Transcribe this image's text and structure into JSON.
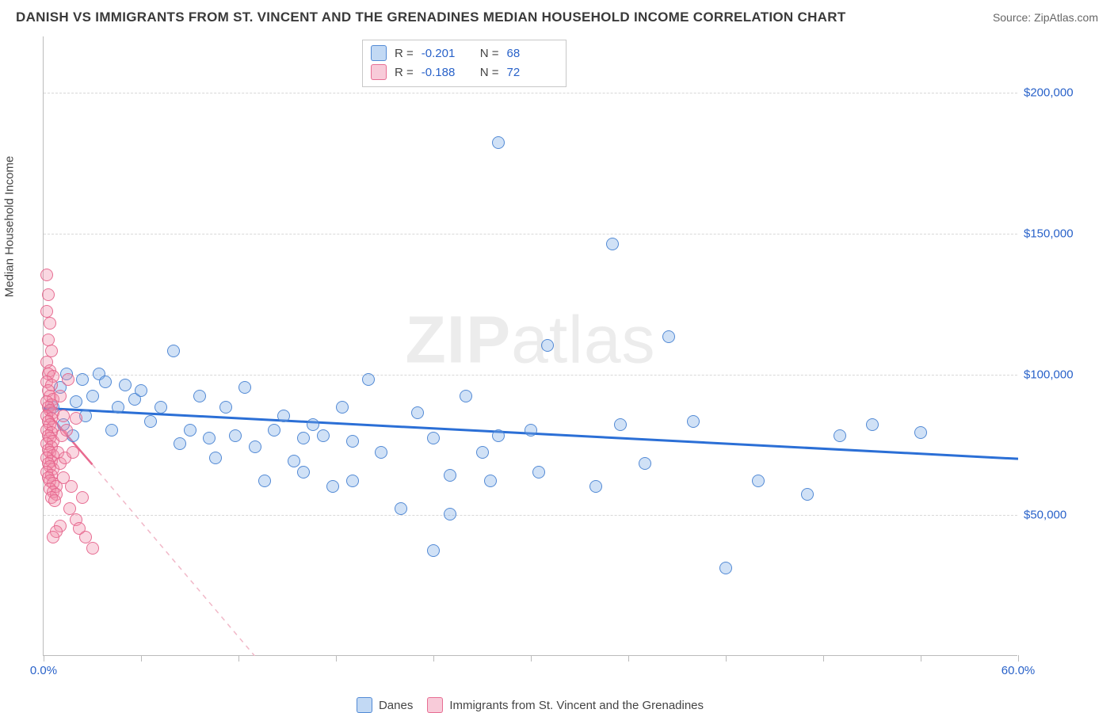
{
  "header": {
    "title": "DANISH VS IMMIGRANTS FROM ST. VINCENT AND THE GRENADINES MEDIAN HOUSEHOLD INCOME CORRELATION CHART",
    "source_label": "Source: ",
    "source_value": "ZipAtlas.com"
  },
  "watermark": {
    "part1": "ZIP",
    "part2": "atlas"
  },
  "chart": {
    "type": "scatter",
    "ylabel": "Median Household Income",
    "xlim": [
      0,
      60
    ],
    "ylim": [
      0,
      220000
    ],
    "x_tick_positions": [
      0,
      6,
      12,
      18,
      24,
      30,
      36,
      42,
      48,
      54,
      60
    ],
    "x_tick_labels_shown": {
      "0": "0.0%",
      "60": "60.0%"
    },
    "y_gridlines": [
      50000,
      100000,
      150000,
      200000
    ],
    "y_tick_labels": {
      "50000": "$50,000",
      "100000": "$100,000",
      "150000": "$150,000",
      "200000": "$200,000"
    },
    "background_color": "#ffffff",
    "grid_color": "#d8d8d8",
    "axis_color": "#bbbbbb",
    "tick_label_color": "#2962c9",
    "series": [
      {
        "id": "danes",
        "label": "Danes",
        "marker_class": "pt-blue",
        "swatch_class": "sw-blue",
        "trend": {
          "x1": 0,
          "y1": 88000,
          "x2": 60,
          "y2": 70000,
          "style": "tl-blue"
        },
        "stats": {
          "R": "-0.201",
          "N": "68"
        },
        "points": [
          [
            0.6,
            88000
          ],
          [
            1.0,
            95000
          ],
          [
            1.2,
            82000
          ],
          [
            1.4,
            100000
          ],
          [
            1.8,
            78000
          ],
          [
            2.0,
            90000
          ],
          [
            2.4,
            98000
          ],
          [
            2.6,
            85000
          ],
          [
            3.0,
            92000
          ],
          [
            3.4,
            100000
          ],
          [
            3.8,
            97000
          ],
          [
            4.2,
            80000
          ],
          [
            4.6,
            88000
          ],
          [
            5.0,
            96000
          ],
          [
            5.6,
            91000
          ],
          [
            6.0,
            94000
          ],
          [
            6.6,
            83000
          ],
          [
            7.2,
            88000
          ],
          [
            8.0,
            108000
          ],
          [
            8.4,
            75000
          ],
          [
            9.0,
            80000
          ],
          [
            9.6,
            92000
          ],
          [
            10.2,
            77000
          ],
          [
            10.6,
            70000
          ],
          [
            11.2,
            88000
          ],
          [
            11.8,
            78000
          ],
          [
            12.4,
            95000
          ],
          [
            13.0,
            74000
          ],
          [
            13.6,
            62000
          ],
          [
            14.2,
            80000
          ],
          [
            14.8,
            85000
          ],
          [
            15.4,
            69000
          ],
          [
            16.0,
            77000
          ],
          [
            16.0,
            65000
          ],
          [
            16.6,
            82000
          ],
          [
            17.2,
            78000
          ],
          [
            17.8,
            60000
          ],
          [
            18.4,
            88000
          ],
          [
            19.0,
            76000
          ],
          [
            19.0,
            62000
          ],
          [
            20.0,
            98000
          ],
          [
            20.8,
            72000
          ],
          [
            22.0,
            52000
          ],
          [
            23.0,
            86000
          ],
          [
            24.0,
            37000
          ],
          [
            24.0,
            77000
          ],
          [
            25.0,
            64000
          ],
          [
            25.0,
            50000
          ],
          [
            26.0,
            92000
          ],
          [
            27.0,
            72000
          ],
          [
            27.5,
            62000
          ],
          [
            28.0,
            78000
          ],
          [
            28.0,
            182000
          ],
          [
            30.0,
            80000
          ],
          [
            30.5,
            65000
          ],
          [
            31.0,
            110000
          ],
          [
            34.0,
            60000
          ],
          [
            35.0,
            146000
          ],
          [
            35.5,
            82000
          ],
          [
            37.0,
            68000
          ],
          [
            38.5,
            113000
          ],
          [
            40.0,
            83000
          ],
          [
            42.0,
            31000
          ],
          [
            44.0,
            62000
          ],
          [
            47.0,
            57000
          ],
          [
            49.0,
            78000
          ],
          [
            51.0,
            82000
          ],
          [
            54.0,
            79000
          ]
        ]
      },
      {
        "id": "svg_immigrants",
        "label": "Immigrants from St. Vincent and the Grenadines",
        "marker_class": "pt-pink",
        "swatch_class": "sw-pink",
        "trend_solid": {
          "x1": 0,
          "y1": 88000,
          "x2": 3,
          "y2": 68000,
          "style": "tl-pink-solid"
        },
        "trend_dash": {
          "x1": 3,
          "y1": 68000,
          "x2": 13,
          "y2": 0,
          "style": "tl-pink-dash"
        },
        "stats": {
          "R": "-0.188",
          "N": "72"
        },
        "points": [
          [
            0.2,
            135000
          ],
          [
            0.3,
            128000
          ],
          [
            0.2,
            122000
          ],
          [
            0.4,
            118000
          ],
          [
            0.3,
            112000
          ],
          [
            0.5,
            108000
          ],
          [
            0.2,
            104000
          ],
          [
            0.4,
            101000
          ],
          [
            0.3,
            100000
          ],
          [
            0.6,
            99000
          ],
          [
            0.2,
            97000
          ],
          [
            0.5,
            96000
          ],
          [
            0.3,
            94000
          ],
          [
            0.4,
            92000
          ],
          [
            0.6,
            91000
          ],
          [
            0.2,
            90000
          ],
          [
            0.5,
            89000
          ],
          [
            0.3,
            88000
          ],
          [
            0.4,
            87000
          ],
          [
            0.6,
            86000
          ],
          [
            0.2,
            85000
          ],
          [
            0.5,
            84000
          ],
          [
            0.3,
            83000
          ],
          [
            0.4,
            82000
          ],
          [
            0.6,
            81000
          ],
          [
            0.2,
            80000
          ],
          [
            0.5,
            79000
          ],
          [
            0.3,
            78000
          ],
          [
            0.4,
            77000
          ],
          [
            0.6,
            76000
          ],
          [
            0.2,
            75000
          ],
          [
            0.5,
            74000
          ],
          [
            0.3,
            73000
          ],
          [
            0.4,
            72000
          ],
          [
            0.6,
            71000
          ],
          [
            0.2,
            70000
          ],
          [
            0.5,
            69000
          ],
          [
            0.3,
            68000
          ],
          [
            0.4,
            67000
          ],
          [
            0.6,
            66000
          ],
          [
            0.2,
            65000
          ],
          [
            0.5,
            64000
          ],
          [
            0.3,
            63000
          ],
          [
            0.4,
            62000
          ],
          [
            0.6,
            61000
          ],
          [
            0.8,
            60000
          ],
          [
            0.4,
            59000
          ],
          [
            0.6,
            58000
          ],
          [
            0.8,
            57000
          ],
          [
            0.5,
            56000
          ],
          [
            0.7,
            55000
          ],
          [
            0.9,
            72000
          ],
          [
            1.0,
            68000
          ],
          [
            1.0,
            92000
          ],
          [
            1.1,
            78000
          ],
          [
            1.2,
            85000
          ],
          [
            1.2,
            63000
          ],
          [
            1.3,
            70000
          ],
          [
            1.4,
            80000
          ],
          [
            1.5,
            98000
          ],
          [
            1.6,
            52000
          ],
          [
            1.7,
            60000
          ],
          [
            1.8,
            72000
          ],
          [
            2.0,
            48000
          ],
          [
            2.0,
            84000
          ],
          [
            2.2,
            45000
          ],
          [
            2.4,
            56000
          ],
          [
            2.6,
            42000
          ],
          [
            3.0,
            38000
          ],
          [
            1.0,
            46000
          ],
          [
            0.8,
            44000
          ],
          [
            0.6,
            42000
          ]
        ]
      }
    ],
    "legend_top": {
      "R_label": "R =",
      "N_label": "N ="
    },
    "legend_bottom": {
      "items": [
        "danes",
        "svg_immigrants"
      ]
    }
  }
}
